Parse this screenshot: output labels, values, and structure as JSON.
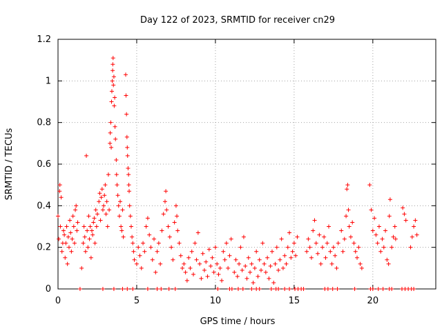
{
  "chart_data": {
    "type": "scatter",
    "title": "Day 122 of 2023, SRMTID for receiver cn29",
    "xlabel": "GPS time / hours",
    "ylabel": "SRMTID / TECUs",
    "xlim": [
      0,
      24
    ],
    "ylim": [
      0,
      1.2
    ],
    "x_ticks": [
      0,
      5,
      10,
      15,
      20
    ],
    "x_tick_labels": [
      "0",
      "5",
      "10",
      "15",
      "20"
    ],
    "y_ticks": [
      0,
      0.2,
      0.4,
      0.6,
      0.8,
      1.0,
      1.2
    ],
    "y_tick_labels": [
      "0",
      "0.2",
      "0.4",
      "0.6",
      "0.8",
      "1",
      "1.2"
    ],
    "grid": true,
    "marker": "+",
    "series": [
      {
        "name": "SRMTID",
        "color": "#ff0000",
        "points": [
          [
            0.0,
            0.35
          ],
          [
            0.05,
            0.24
          ],
          [
            0.1,
            0.47
          ],
          [
            0.12,
            0.5
          ],
          [
            0.15,
            0.3
          ],
          [
            0.2,
            0.44
          ],
          [
            0.25,
            0.18
          ],
          [
            0.3,
            0.22
          ],
          [
            0.35,
            0.28
          ],
          [
            0.4,
            0.26
          ],
          [
            0.45,
            0.15
          ],
          [
            0.5,
            0.22
          ],
          [
            0.55,
            0.3
          ],
          [
            0.6,
            0.12
          ],
          [
            0.65,
            0.25
          ],
          [
            0.7,
            0.2
          ],
          [
            0.75,
            0.33
          ],
          [
            0.8,
            0.27
          ],
          [
            0.85,
            0.18
          ],
          [
            0.9,
            0.24
          ],
          [
            0.95,
            0.35
          ],
          [
            1.0,
            0.3
          ],
          [
            1.05,
            0.22
          ],
          [
            1.1,
            0.38
          ],
          [
            1.15,
            0.4
          ],
          [
            1.2,
            0.28
          ],
          [
            1.25,
            0.32
          ],
          [
            1.5,
            0.1
          ],
          [
            1.6,
            0.22
          ],
          [
            1.65,
            0.3
          ],
          [
            1.7,
            0.25
          ],
          [
            1.75,
            0.18
          ],
          [
            1.8,
            0.64
          ],
          [
            1.85,
            0.28
          ],
          [
            1.9,
            0.2
          ],
          [
            1.95,
            0.35
          ],
          [
            2.0,
            0.24
          ],
          [
            2.05,
            0.3
          ],
          [
            2.1,
            0.15
          ],
          [
            2.15,
            0.28
          ],
          [
            2.2,
            0.26
          ],
          [
            2.25,
            0.32
          ],
          [
            2.3,
            0.34
          ],
          [
            2.35,
            0.22
          ],
          [
            2.4,
            0.38
          ],
          [
            2.45,
            0.3
          ],
          [
            2.5,
            0.36
          ],
          [
            2.6,
            0.42
          ],
          [
            2.65,
            0.46
          ],
          [
            2.7,
            0.33
          ],
          [
            2.75,
            0.44
          ],
          [
            2.8,
            0.48
          ],
          [
            2.85,
            0.38
          ],
          [
            2.9,
            0.4
          ],
          [
            2.95,
            0.45
          ],
          [
            3.0,
            0.5
          ],
          [
            3.05,
            0.36
          ],
          [
            3.1,
            0.42
          ],
          [
            3.15,
            0.3
          ],
          [
            3.2,
            0.55
          ],
          [
            3.25,
            0.38
          ],
          [
            3.3,
            0.7
          ],
          [
            3.32,
            0.75
          ],
          [
            3.35,
            0.8
          ],
          [
            3.38,
            0.68
          ],
          [
            3.4,
            0.9
          ],
          [
            3.42,
            0.95
          ],
          [
            3.45,
            1.0
          ],
          [
            3.47,
            1.05
          ],
          [
            3.48,
            1.08
          ],
          [
            3.5,
            1.11
          ],
          [
            3.52,
            0.98
          ],
          [
            3.55,
            1.02
          ],
          [
            3.57,
            0.88
          ],
          [
            3.6,
            0.92
          ],
          [
            3.62,
            0.78
          ],
          [
            3.65,
            0.72
          ],
          [
            3.7,
            0.62
          ],
          [
            3.72,
            0.55
          ],
          [
            3.75,
            0.5
          ],
          [
            3.8,
            0.45
          ],
          [
            3.85,
            0.4
          ],
          [
            3.9,
            0.35
          ],
          [
            3.95,
            0.42
          ],
          [
            4.0,
            0.3
          ],
          [
            4.05,
            0.28
          ],
          [
            4.1,
            0.38
          ],
          [
            4.15,
            0.25
          ],
          [
            4.3,
            1.03
          ],
          [
            4.32,
            0.93
          ],
          [
            4.35,
            0.84
          ],
          [
            4.38,
            0.73
          ],
          [
            4.4,
            0.68
          ],
          [
            4.42,
            0.64
          ],
          [
            4.45,
            0.58
          ],
          [
            4.48,
            0.55
          ],
          [
            4.5,
            0.5
          ],
          [
            4.52,
            0.47
          ],
          [
            4.55,
            0.4
          ],
          [
            4.6,
            0.35
          ],
          [
            4.65,
            0.3
          ],
          [
            4.7,
            0.25
          ],
          [
            4.75,
            0.22
          ],
          [
            4.8,
            0.18
          ],
          [
            4.85,
            0.14
          ],
          [
            5.0,
            0.12
          ],
          [
            5.1,
            0.2
          ],
          [
            5.2,
            0.16
          ],
          [
            5.3,
            0.1
          ],
          [
            5.4,
            0.22
          ],
          [
            5.5,
            0.18
          ],
          [
            5.6,
            0.3
          ],
          [
            5.7,
            0.34
          ],
          [
            5.8,
            0.26
          ],
          [
            5.9,
            0.2
          ],
          [
            6.0,
            0.14
          ],
          [
            6.1,
            0.24
          ],
          [
            6.2,
            0.08
          ],
          [
            6.3,
            0.18
          ],
          [
            6.4,
            0.22
          ],
          [
            6.5,
            0.12
          ],
          [
            6.6,
            0.28
          ],
          [
            6.7,
            0.36
          ],
          [
            6.8,
            0.42
          ],
          [
            6.85,
            0.47
          ],
          [
            6.9,
            0.38
          ],
          [
            7.0,
            0.3
          ],
          [
            7.1,
            0.25
          ],
          [
            7.2,
            0.2
          ],
          [
            7.3,
            0.14
          ],
          [
            7.4,
            0.32
          ],
          [
            7.5,
            0.4
          ],
          [
            7.55,
            0.35
          ],
          [
            7.6,
            0.28
          ],
          [
            7.7,
            0.22
          ],
          [
            7.8,
            0.16
          ],
          [
            7.9,
            0.1
          ],
          [
            8.0,
            0.12
          ],
          [
            8.1,
            0.08
          ],
          [
            8.2,
            0.04
          ],
          [
            8.3,
            0.15
          ],
          [
            8.4,
            0.1
          ],
          [
            8.5,
            0.18
          ],
          [
            8.6,
            0.07
          ],
          [
            8.7,
            0.22
          ],
          [
            8.8,
            0.14
          ],
          [
            8.9,
            0.27
          ],
          [
            9.0,
            0.12
          ],
          [
            9.1,
            0.05
          ],
          [
            9.2,
            0.17
          ],
          [
            9.3,
            0.09
          ],
          [
            9.4,
            0.13
          ],
          [
            9.5,
            0.06
          ],
          [
            9.6,
            0.19
          ],
          [
            9.7,
            0.11
          ],
          [
            9.8,
            0.15
          ],
          [
            9.9,
            0.08
          ],
          [
            10.0,
            0.2
          ],
          [
            10.1,
            0.12
          ],
          [
            10.2,
            0.07
          ],
          [
            10.3,
            0.1
          ],
          [
            10.4,
            0.04
          ],
          [
            10.5,
            0.18
          ],
          [
            10.6,
            0.14
          ],
          [
            10.7,
            0.22
          ],
          [
            10.8,
            0.1
          ],
          [
            10.9,
            0.16
          ],
          [
            11.0,
            0.24
          ],
          [
            11.2,
            0.08
          ],
          [
            11.3,
            0.14
          ],
          [
            11.4,
            0.06
          ],
          [
            11.5,
            0.12
          ],
          [
            11.6,
            0.2
          ],
          [
            11.7,
            0.09
          ],
          [
            11.8,
            0.25
          ],
          [
            11.9,
            0.11
          ],
          [
            12.0,
            0.05
          ],
          [
            12.1,
            0.15
          ],
          [
            12.2,
            0.08
          ],
          [
            12.3,
            0.12
          ],
          [
            12.4,
            0.03
          ],
          [
            12.5,
            0.1
          ],
          [
            12.6,
            0.18
          ],
          [
            12.7,
            0.06
          ],
          [
            12.8,
            0.14
          ],
          [
            12.9,
            0.09
          ],
          [
            13.0,
            0.22
          ],
          [
            13.1,
            0.12
          ],
          [
            13.2,
            0.08
          ],
          [
            13.3,
            0.15
          ],
          [
            13.4,
            0.05
          ],
          [
            13.5,
            0.11
          ],
          [
            13.6,
            0.18
          ],
          [
            13.7,
            0.03
          ],
          [
            13.8,
            0.12
          ],
          [
            13.9,
            0.2
          ],
          [
            14.0,
            0.09
          ],
          [
            14.1,
            0.14
          ],
          [
            14.2,
            0.24
          ],
          [
            14.3,
            0.1
          ],
          [
            14.4,
            0.16
          ],
          [
            14.5,
            0.12
          ],
          [
            14.6,
            0.2
          ],
          [
            14.7,
            0.27
          ],
          [
            14.8,
            0.15
          ],
          [
            14.9,
            0.18
          ],
          [
            15.0,
            0.22
          ],
          [
            15.1,
            0.16
          ],
          [
            15.2,
            0.25
          ],
          [
            15.8,
            0.18
          ],
          [
            15.9,
            0.24
          ],
          [
            16.0,
            0.2
          ],
          [
            16.1,
            0.15
          ],
          [
            16.2,
            0.28
          ],
          [
            16.3,
            0.33
          ],
          [
            16.4,
            0.22
          ],
          [
            16.5,
            0.17
          ],
          [
            16.6,
            0.26
          ],
          [
            16.7,
            0.12
          ],
          [
            16.8,
            0.2
          ],
          [
            16.9,
            0.25
          ],
          [
            17.0,
            0.15
          ],
          [
            17.1,
            0.22
          ],
          [
            17.2,
            0.3
          ],
          [
            17.3,
            0.18
          ],
          [
            17.4,
            0.12
          ],
          [
            17.5,
            0.2
          ],
          [
            17.6,
            0.16
          ],
          [
            17.7,
            0.1
          ],
          [
            17.8,
            0.22
          ],
          [
            18.0,
            0.28
          ],
          [
            18.1,
            0.18
          ],
          [
            18.2,
            0.24
          ],
          [
            18.3,
            0.35
          ],
          [
            18.35,
            0.48
          ],
          [
            18.4,
            0.5
          ],
          [
            18.45,
            0.38
          ],
          [
            18.5,
            0.3
          ],
          [
            18.6,
            0.25
          ],
          [
            18.7,
            0.32
          ],
          [
            18.8,
            0.22
          ],
          [
            18.9,
            0.18
          ],
          [
            19.0,
            0.15
          ],
          [
            19.1,
            0.2
          ],
          [
            19.2,
            0.12
          ],
          [
            19.3,
            0.1
          ],
          [
            19.8,
            0.5
          ],
          [
            19.9,
            0.38
          ],
          [
            20.0,
            0.28
          ],
          [
            20.1,
            0.34
          ],
          [
            20.2,
            0.26
          ],
          [
            20.3,
            0.22
          ],
          [
            20.4,
            0.3
          ],
          [
            20.5,
            0.18
          ],
          [
            20.6,
            0.24
          ],
          [
            20.7,
            0.2
          ],
          [
            20.8,
            0.28
          ],
          [
            20.9,
            0.14
          ],
          [
            21.0,
            0.12
          ],
          [
            21.05,
            0.35
          ],
          [
            21.1,
            0.43
          ],
          [
            21.2,
            0.2
          ],
          [
            21.3,
            0.25
          ],
          [
            21.4,
            0.3
          ],
          [
            21.45,
            0.24
          ],
          [
            21.9,
            0.39
          ],
          [
            22.0,
            0.36
          ],
          [
            22.1,
            0.33
          ],
          [
            22.4,
            0.2
          ],
          [
            22.5,
            0.25
          ],
          [
            22.6,
            0.3
          ],
          [
            22.7,
            0.33
          ],
          [
            22.8,
            0.26
          ]
        ],
        "zero_points": [
          1.4,
          2.85,
          3.55,
          4.1,
          4.4,
          4.75,
          5.7,
          6.3,
          6.55,
          7.05,
          7.45,
          10.15,
          10.9,
          11.05,
          11.45,
          11.75,
          12.3,
          12.6,
          12.8,
          13.55,
          13.85,
          14.0,
          14.4,
          14.7,
          15.05,
          15.25,
          15.45,
          15.6,
          16.95,
          17.15,
          17.45,
          17.75,
          18.85,
          19.85,
          20.0,
          20.35,
          20.65,
          21.05,
          21.2,
          21.85,
          22.05,
          22.25,
          22.45,
          22.6
        ]
      }
    ]
  }
}
